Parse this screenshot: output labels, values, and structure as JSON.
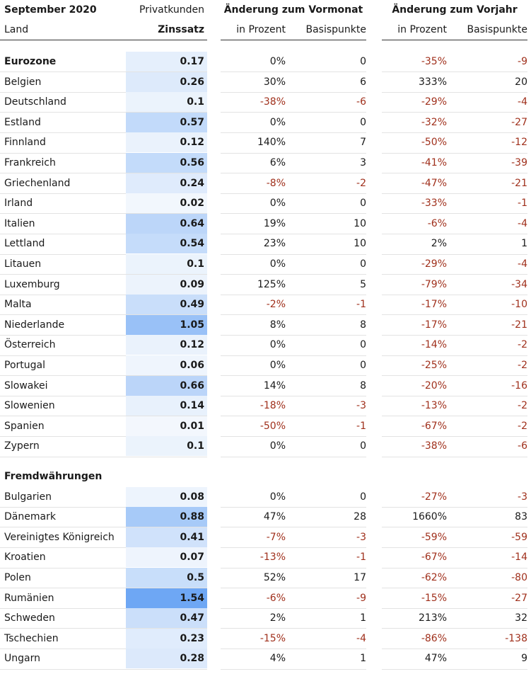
{
  "header": {
    "title": "September 2020",
    "col_group1": "Privatkunden",
    "land": "Land",
    "rate": "Zinssatz",
    "change_month": "Änderung zum Vormonat",
    "change_year": "Änderung zum Vorjahr",
    "pct": "in Prozent",
    "bp": "Basispunkte"
  },
  "colors": {
    "negative": "#a0301c",
    "heat_low": "#f4f8fd",
    "heat_high": "#6ea7f4"
  },
  "sections": [
    {
      "title": "Eurozone",
      "rows": [
        {
          "land": "Belgien",
          "rate": "0.26",
          "mp": "30%",
          "mb": "6",
          "yp": "333%",
          "yb": "20"
        },
        {
          "land": "Deutschland",
          "rate": "0.1",
          "mp": "-38%",
          "mb": "-6",
          "yp": "-29%",
          "yb": "-4"
        },
        {
          "land": "Estland",
          "rate": "0.57",
          "mp": "0%",
          "mb": "0",
          "yp": "-32%",
          "yb": "-27"
        },
        {
          "land": "Finnland",
          "rate": "0.12",
          "mp": "140%",
          "mb": "7",
          "yp": "-50%",
          "yb": "-12"
        },
        {
          "land": "Frankreich",
          "rate": "0.56",
          "mp": "6%",
          "mb": "3",
          "yp": "-41%",
          "yb": "-39"
        },
        {
          "land": "Griechenland",
          "rate": "0.24",
          "mp": "-8%",
          "mb": "-2",
          "yp": "-47%",
          "yb": "-21"
        },
        {
          "land": "Irland",
          "rate": "0.02",
          "mp": "0%",
          "mb": "0",
          "yp": "-33%",
          "yb": "-1"
        },
        {
          "land": "Italien",
          "rate": "0.64",
          "mp": "19%",
          "mb": "10",
          "yp": "-6%",
          "yb": "-4"
        },
        {
          "land": "Lettland",
          "rate": "0.54",
          "mp": "23%",
          "mb": "10",
          "yp": "2%",
          "yb": "1"
        },
        {
          "land": "Litauen",
          "rate": "0.1",
          "mp": "0%",
          "mb": "0",
          "yp": "-29%",
          "yb": "-4"
        },
        {
          "land": "Luxemburg",
          "rate": "0.09",
          "mp": "125%",
          "mb": "5",
          "yp": "-79%",
          "yb": "-34"
        },
        {
          "land": "Malta",
          "rate": "0.49",
          "mp": "-2%",
          "mb": "-1",
          "yp": "-17%",
          "yb": "-10"
        },
        {
          "land": "Niederlande",
          "rate": "1.05",
          "mp": "8%",
          "mb": "8",
          "yp": "-17%",
          "yb": "-21"
        },
        {
          "land": "Österreich",
          "rate": "0.12",
          "mp": "0%",
          "mb": "0",
          "yp": "-14%",
          "yb": "-2"
        },
        {
          "land": "Portugal",
          "rate": "0.06",
          "mp": "0%",
          "mb": "0",
          "yp": "-25%",
          "yb": "-2"
        },
        {
          "land": "Slowakei",
          "rate": "0.66",
          "mp": "14%",
          "mb": "8",
          "yp": "-20%",
          "yb": "-16"
        },
        {
          "land": "Slowenien",
          "rate": "0.14",
          "mp": "-18%",
          "mb": "-3",
          "yp": "-13%",
          "yb": "-2"
        },
        {
          "land": "Spanien",
          "rate": "0.01",
          "mp": "-50%",
          "mb": "-1",
          "yp": "-67%",
          "yb": "-2"
        },
        {
          "land": "Zypern",
          "rate": "0.1",
          "mp": "0%",
          "mb": "0",
          "yp": "-38%",
          "yb": "-6"
        }
      ],
      "summary": {
        "land": "Eurozone",
        "rate": "0.17",
        "mp": "0%",
        "mb": "0",
        "yp": "-35%",
        "yb": "-9"
      }
    },
    {
      "title": "Fremdwährungen",
      "rows": [
        {
          "land": "Bulgarien",
          "rate": "0.08",
          "mp": "0%",
          "mb": "0",
          "yp": "-27%",
          "yb": "-3"
        },
        {
          "land": "Dänemark",
          "rate": "0.88",
          "mp": "47%",
          "mb": "28",
          "yp": "1660%",
          "yb": "83"
        },
        {
          "land": "Vereinigtes Königreich",
          "rate": "0.41",
          "mp": "-7%",
          "mb": "-3",
          "yp": "-59%",
          "yb": "-59"
        },
        {
          "land": "Kroatien",
          "rate": "0.07",
          "mp": "-13%",
          "mb": "-1",
          "yp": "-67%",
          "yb": "-14"
        },
        {
          "land": "Polen",
          "rate": "0.5",
          "mp": "52%",
          "mb": "17",
          "yp": "-62%",
          "yb": "-80"
        },
        {
          "land": "Rumänien",
          "rate": "1.54",
          "mp": "-6%",
          "mb": "-9",
          "yp": "-15%",
          "yb": "-27"
        },
        {
          "land": "Schweden",
          "rate": "0.47",
          "mp": "2%",
          "mb": "1",
          "yp": "213%",
          "yb": "32"
        },
        {
          "land": "Tschechien",
          "rate": "0.23",
          "mp": "-15%",
          "mb": "-4",
          "yp": "-86%",
          "yb": "-138"
        },
        {
          "land": "Ungarn",
          "rate": "0.28",
          "mp": "4%",
          "mb": "1",
          "yp": "47%",
          "yb": "9"
        }
      ]
    }
  ]
}
